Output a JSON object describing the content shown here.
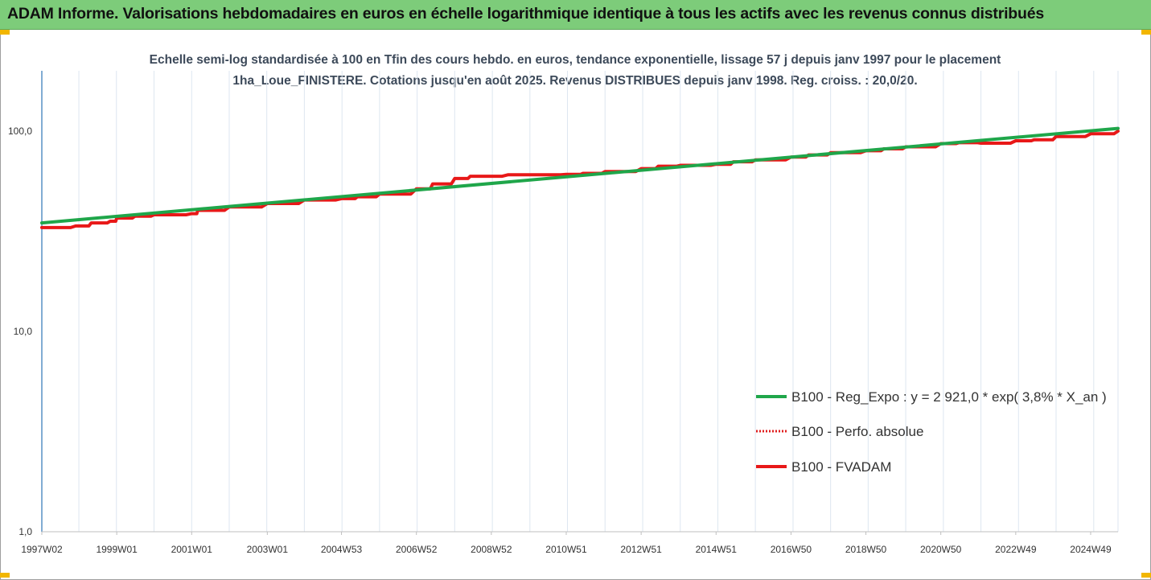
{
  "header": {
    "title": "ADAM Informe. Valorisations hebdomadaires en euros en échelle logarithmique identique à tous les actifs avec les revenus connus distribués"
  },
  "colors": {
    "header_bg": "#7dcc7a",
    "corner_marks": "#f2b600",
    "axis_line": "#2e75b6",
    "gridline": "#dde6f0"
  },
  "chart_data": {
    "type": "line",
    "title": "Echelle semi-log standardisée à 100 en Tfin des cours hebdo. en euros, tendance exponentielle, lissage 57 j depuis janv 1997 pour le placement 1ha_Loue_FINISTERE.  Cotations jusqu'en août 2025. Revenus DISTRIBUES depuis janv 1998. Reg. croiss. : 20,0/20.",
    "x_scale": "time (weekly)",
    "y_scale": "log10",
    "ylim": [
      1,
      200
    ],
    "y_ticks": [
      {
        "value": 1,
        "label": "1,0"
      },
      {
        "value": 10,
        "label": "10,0"
      },
      {
        "value": 100,
        "label": "100,0"
      }
    ],
    "xlim": [
      "1997-01-06",
      "2025-08-25"
    ],
    "x_ticks": [
      {
        "date": "1997-01-06",
        "label": "1997W02"
      },
      {
        "date": "1999-01-04",
        "label": "1999W01"
      },
      {
        "date": "2001-01-01",
        "label": "2001W01"
      },
      {
        "date": "2003-01-06",
        "label": "2003W01"
      },
      {
        "date": "2004-12-27",
        "label": "2004W53"
      },
      {
        "date": "2006-12-25",
        "label": "2006W52"
      },
      {
        "date": "2008-12-22",
        "label": "2008W52"
      },
      {
        "date": "2010-12-20",
        "label": "2010W51"
      },
      {
        "date": "2012-12-17",
        "label": "2012W51"
      },
      {
        "date": "2014-12-15",
        "label": "2014W51"
      },
      {
        "date": "2016-12-12",
        "label": "2016W50"
      },
      {
        "date": "2018-12-10",
        "label": "2018W50"
      },
      {
        "date": "2020-12-07",
        "label": "2020W50"
      },
      {
        "date": "2022-12-05",
        "label": "2022W49"
      },
      {
        "date": "2024-12-02",
        "label": "2024W49"
      }
    ],
    "grid": {
      "vertical": true,
      "horizontal": false
    },
    "legend_position": "right",
    "series": [
      {
        "name": "B100 - Reg_Expo : y = 2 921,0 * exp( 3,8% *  X_an )",
        "color": "#1fa64a",
        "style": "solid",
        "x": [
          "1997-01-06",
          "2025-08-25"
        ],
        "y": [
          34.8,
          103.2
        ]
      },
      {
        "name": "B100 - Perfo. absolue",
        "color": "#e02020",
        "style": "dotted",
        "x": [],
        "y": []
      },
      {
        "name": "B100 - FVADAM",
        "color": "#e81818",
        "style": "solid",
        "x": [
          "1997-01-06",
          "1997-12-01",
          "1998-05-01",
          "1998-11-01",
          "1999-01-04",
          "1999-07-01",
          "2000-01-01",
          "2001-01-01",
          "2001-03-01",
          "2002-01-01",
          "2003-01-06",
          "2004-01-01",
          "2004-12-27",
          "2005-06-01",
          "2006-01-01",
          "2006-12-25",
          "2007-06-01",
          "2008-01-01",
          "2008-06-01",
          "2009-06-01",
          "2010-01-01",
          "2010-12-20",
          "2011-06-01",
          "2012-01-01",
          "2012-12-17",
          "2013-06-01",
          "2014-01-01",
          "2014-12-15",
          "2015-06-01",
          "2016-01-01",
          "2016-12-12",
          "2017-06-01",
          "2018-01-01",
          "2018-12-10",
          "2019-06-01",
          "2020-01-01",
          "2020-12-07",
          "2021-06-01",
          "2022-01-01",
          "2022-12-05",
          "2023-06-01",
          "2024-01-01",
          "2024-12-02",
          "2025-08-25"
        ],
        "y": [
          33.0,
          33.6,
          34.8,
          35.5,
          36.8,
          37.6,
          38.2,
          38.7,
          40.2,
          41.8,
          43.5,
          45.3,
          46.0,
          47.0,
          48.5,
          51.5,
          54.5,
          58.0,
          59.5,
          60.5,
          60.5,
          60.8,
          61.5,
          62.8,
          65.0,
          66.8,
          67.5,
          68.3,
          70.3,
          71.8,
          74.2,
          76.0,
          78.0,
          79.8,
          81.6,
          83.5,
          86.6,
          87.5,
          87.0,
          89.5,
          90.5,
          94.0,
          97.0,
          100.0
        ]
      }
    ]
  }
}
